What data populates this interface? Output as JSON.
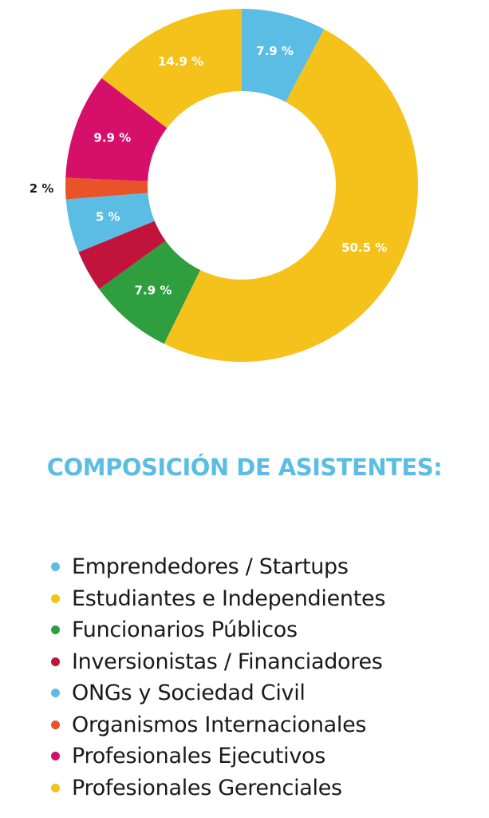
{
  "chart_data": {
    "type": "pie",
    "title": "COMPOSICIÓN DE ASISTENTES:",
    "donut": true,
    "slices": [
      {
        "label": "7.9 %",
        "value": 7.9,
        "color": "#5bbde4",
        "category": "Emprendedores / Startups"
      },
      {
        "label": "50.5 %",
        "value": 50.5,
        "color": "#f5c21b",
        "category": "Estudiantes e Independientes"
      },
      {
        "label": "7.9 %",
        "value": 7.9,
        "color": "#2e9e3e",
        "category": "Funcionarios Públicos"
      },
      {
        "label": "",
        "value": 3.9,
        "color": "#c0143c",
        "category": "Inversionistas / Financiadores"
      },
      {
        "label": "5 %",
        "value": 5,
        "color": "#5bbde4",
        "category": "ONGs y Sociedad Civil"
      },
      {
        "label": "2 %",
        "value": 2,
        "color": "#e8532a",
        "category": "Organismos Internacionales",
        "label_outside": true
      },
      {
        "label": "9.9 %",
        "value": 9.9,
        "color": "#d60f6b",
        "category": "Profesionales Ejecutivos"
      },
      {
        "label": "14.9 %",
        "value": 14.9,
        "color": "#f5c21b",
        "category": "Profesionales Gerenciales"
      }
    ],
    "legend": {
      "placement": "bottom",
      "items": [
        {
          "label": "Emprendedores / Startups",
          "color": "#5bbde4"
        },
        {
          "label": "Estudiantes e Independientes",
          "color": "#f5c21b"
        },
        {
          "label": "Funcionarios Públicos",
          "color": "#2e9e3e"
        },
        {
          "label": "Inversionistas / Financiadores",
          "color": "#c0143c"
        },
        {
          "label": "ONGs y Sociedad Civil",
          "color": "#5bbde4"
        },
        {
          "label": "Organismos Internacionales",
          "color": "#e8532a"
        },
        {
          "label": "Profesionales Ejecutivos",
          "color": "#d60f6b"
        },
        {
          "label": "Profesionales Gerenciales",
          "color": "#f5c21b"
        }
      ]
    }
  }
}
